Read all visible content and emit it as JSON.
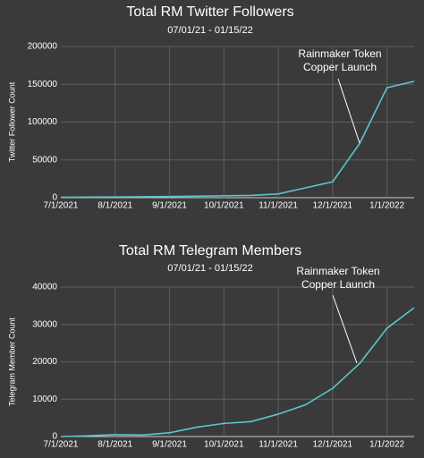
{
  "chart_data": [
    {
      "type": "line",
      "title": "Total RM Twitter Followers",
      "subtitle": "07/01/21 - 01/15/22",
      "y_label": "Twitter Follower Count",
      "categories": [
        "7/1/2021",
        null,
        "8/1/2021",
        null,
        "9/1/2021",
        null,
        "10/1/2021",
        null,
        "11/1/2021",
        null,
        "12/1/2021",
        null,
        "1/1/2022",
        null
      ],
      "series": [
        {
          "name": "Twitter Followers",
          "color": "#5cc6c8",
          "values": [
            500,
            800,
            1000,
            1200,
            1500,
            2000,
            2500,
            3000,
            5000,
            13000,
            21000,
            72000,
            145500,
            154000
          ]
        }
      ],
      "ylim": [
        0,
        200000
      ],
      "yticks": [
        0,
        50000,
        100000,
        150000,
        200000
      ],
      "grid": true,
      "annotation": [
        "Rainmaker Token",
        "Copper Launch"
      ]
    },
    {
      "type": "line",
      "title": "Total RM Telegram Members",
      "subtitle": "07/01/21 - 01/15/22",
      "y_label": "Telegram Member Count",
      "categories": [
        "7/1/2021",
        null,
        "8/1/2021",
        null,
        "9/1/2021",
        null,
        "10/1/2021",
        null,
        "11/1/2021",
        null,
        "12/1/2021",
        null,
        "1/1/2022",
        null
      ],
      "series": [
        {
          "name": "Telegram Members",
          "color": "#5cc6c8",
          "values": [
            0,
            200,
            500,
            400,
            1000,
            2500,
            3500,
            4000,
            6000,
            8500,
            12900,
            19600,
            29000,
            34500
          ]
        }
      ],
      "ylim": [
        0,
        40000
      ],
      "yticks": [
        0,
        10000,
        20000,
        30000,
        40000
      ],
      "grid": true,
      "annotation": [
        "Rainmaker Token",
        "Copper Launch"
      ]
    }
  ]
}
